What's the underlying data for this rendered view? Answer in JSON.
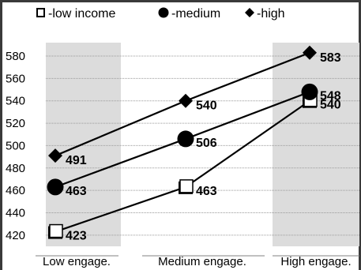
{
  "chart_data": {
    "type": "line",
    "categories": [
      "Low engage.",
      "Medium engage.",
      "High engage."
    ],
    "ylim": [
      410,
      592
    ],
    "yticks": [
      420,
      440,
      460,
      480,
      500,
      520,
      540,
      560,
      580
    ],
    "grid": true,
    "legend_position": "top",
    "series": [
      {
        "name": "low income",
        "legend_label": "-low income",
        "marker": "square",
        "values": [
          423,
          463,
          540
        ]
      },
      {
        "name": "medium",
        "legend_label": "-medium",
        "marker": "circle",
        "values": [
          463,
          506,
          548
        ]
      },
      {
        "name": "high",
        "legend_label": "-high",
        "marker": "diamond",
        "values": [
          491,
          540,
          583
        ]
      }
    ],
    "colors": {
      "line": "#000000",
      "band": "#dcdcdc",
      "grid": "#9a9a9a",
      "frame": "#3a3a3a",
      "background": "#ffffff"
    }
  }
}
